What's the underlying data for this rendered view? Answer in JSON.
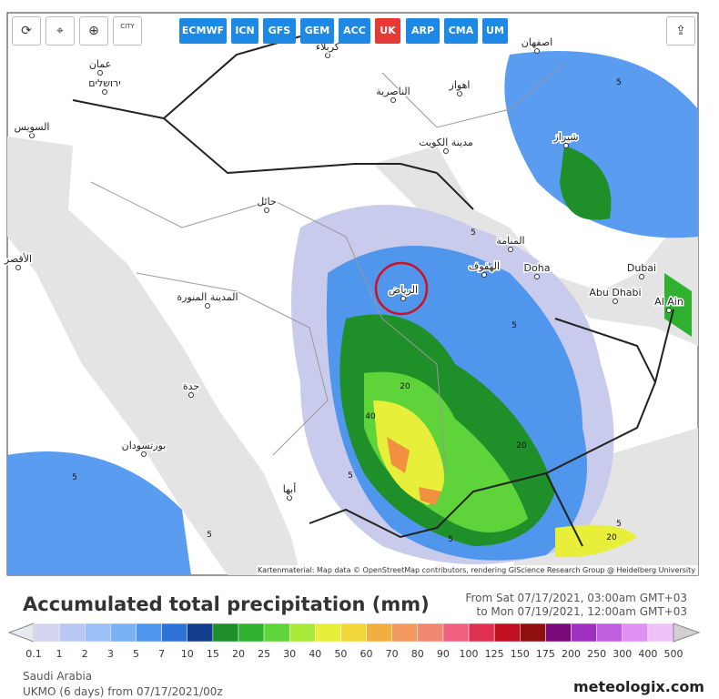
{
  "toolbar": {
    "city_button": "CITY",
    "models": [
      "ECMWF",
      "ICN",
      "GFS",
      "GEM",
      "ACC",
      "UK",
      "ARP",
      "CMA",
      "UM"
    ],
    "active_model": "UK"
  },
  "map": {
    "labels": [
      "عمان",
      "ירושלים",
      "السويس",
      "كربلاء",
      "الناصرية",
      "اهواز",
      "اصفهان",
      "مدينة الكويت",
      "شيراز",
      "حائل",
      "المنامة",
      "الهفوف",
      "Doha",
      "Dubai",
      "Abu Dhabi",
      "Al Ain",
      "الرياض",
      "المدينة المنورة",
      "جدة",
      "بورتسودان",
      "أبها",
      "الأقصر"
    ],
    "contour_labels": [
      "5",
      "5",
      "5",
      "5",
      "5",
      "20",
      "40",
      "20",
      "5",
      "5",
      "20",
      "5"
    ],
    "attribution": "Kartenmaterial: Map data © OpenStreetMap contributors, rendering GIScience Research Group @ Heidelberg University"
  },
  "title": "Accumulated total precipitation (mm)",
  "range_from": "From Sat 07/17/2021, 03:00am GMT+03",
  "range_to": "to Mon 07/19/2021, 12:00am GMT+03",
  "legend": {
    "values": [
      0.1,
      1,
      2,
      3,
      5,
      7,
      10,
      15,
      20,
      25,
      30,
      40,
      50,
      60,
      70,
      80,
      90,
      100,
      125,
      150,
      175,
      200,
      250,
      300,
      400,
      500
    ],
    "colors": [
      "#e8e8f0",
      "#d4d4ee",
      "#b8c8f2",
      "#9cc0f6",
      "#7ab0f4",
      "#4f96ec",
      "#2e72d8",
      "#133c8c",
      "#1f8f2a",
      "#2fb02f",
      "#5ed43a",
      "#a8ea3a",
      "#e8ef3a",
      "#f0d63a",
      "#f0b040",
      "#f09860",
      "#f08870",
      "#f06080",
      "#e03050",
      "#c01020",
      "#901010",
      "#7a0a7a",
      "#a030c0",
      "#c060e0",
      "#e090f0",
      "#f0c0f8",
      "#d0d0d0"
    ]
  },
  "region": "Saudi Arabia",
  "run": "UKMO (6 days) from 07/17/2021/00z",
  "brand": "meteologix.com"
}
